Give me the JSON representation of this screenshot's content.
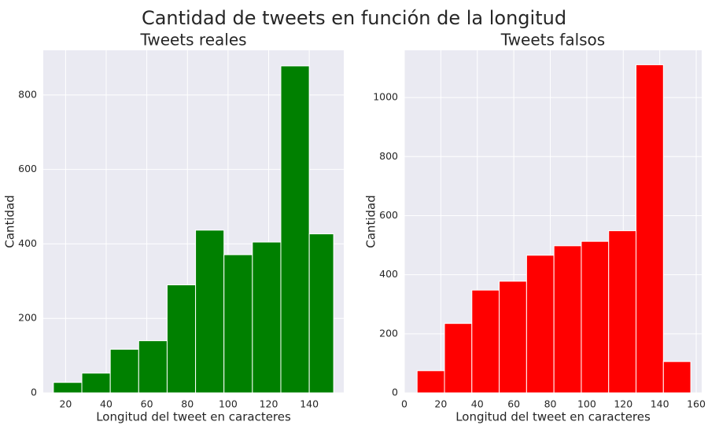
{
  "suptitle": "Cantidad de tweets en función de la longitud",
  "chart_data": [
    {
      "type": "bar",
      "title": "Tweets reales",
      "xlabel": "Longitud del tweet en caracteres",
      "ylabel": "Cantidad",
      "color": "#008000",
      "xlim": [
        9,
        157
      ],
      "ylim": [
        0,
        920
      ],
      "xticks": [
        20,
        40,
        60,
        80,
        100,
        120,
        140
      ],
      "yticks": [
        0,
        200,
        400,
        600,
        800
      ],
      "bin_edges": [
        14,
        28,
        42,
        56,
        70,
        84,
        98,
        112,
        126,
        140,
        152
      ],
      "values": [
        28,
        53,
        117,
        140,
        290,
        437,
        371,
        405,
        878,
        427
      ]
    },
    {
      "type": "bar",
      "title": "Tweets falsos",
      "xlabel": "Longitud del tweet en caracteres",
      "ylabel": "Cantidad",
      "color": "#ff0000",
      "xlim": [
        0,
        163
      ],
      "ylim": [
        0,
        1160
      ],
      "xticks": [
        0,
        20,
        40,
        60,
        80,
        100,
        120,
        140,
        160
      ],
      "yticks": [
        0,
        200,
        400,
        600,
        800,
        1000
      ],
      "bin_edges": [
        7,
        22,
        37,
        52,
        67,
        82,
        97,
        112,
        127,
        142,
        157
      ],
      "values": [
        75,
        235,
        348,
        378,
        466,
        498,
        513,
        549,
        1111,
        106
      ]
    }
  ]
}
